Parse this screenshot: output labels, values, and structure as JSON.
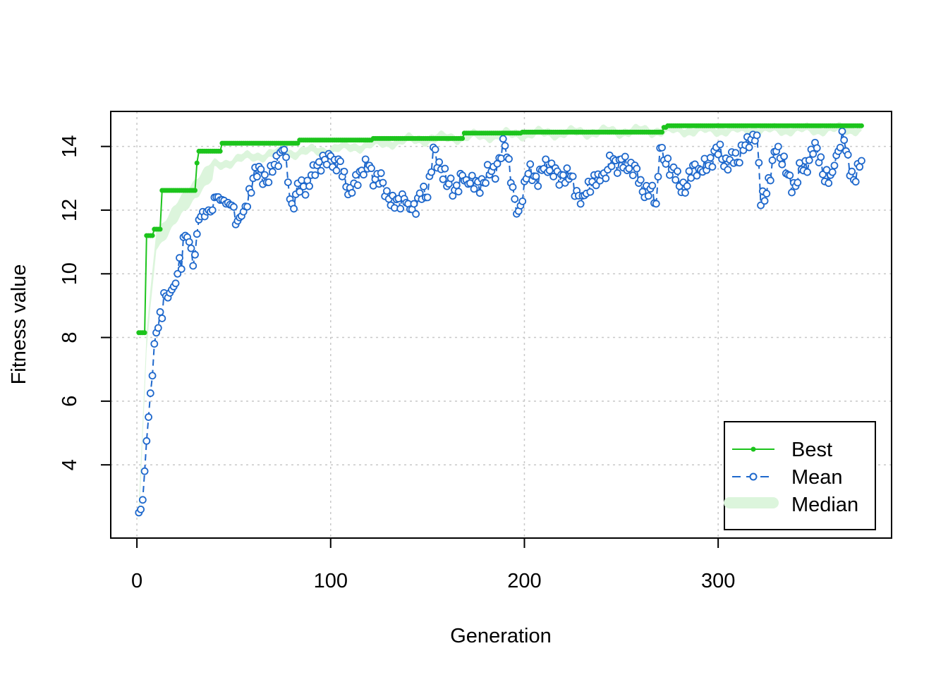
{
  "chart_data": {
    "type": "line",
    "xlabel": "Generation",
    "ylabel": "Fitness value",
    "xlim": [
      -13.5,
      389.5
    ],
    "ylim": [
      1.7,
      15.1
    ],
    "x_ticks": [
      0,
      100,
      200,
      300
    ],
    "y_ticks": [
      4,
      6,
      8,
      10,
      12,
      14
    ],
    "grid": true,
    "legend_position": "bottom-right",
    "generations": 374,
    "series": [
      {
        "name": "Best",
        "style": "solid line with filled dots",
        "color": "#1cc41c",
        "steps": [
          {
            "x": [
              1,
              4
            ],
            "y": 8.15
          },
          {
            "x": [
              5,
              8
            ],
            "y": 11.2
          },
          {
            "x": [
              9,
              12
            ],
            "y": 11.4
          },
          {
            "x": [
              13,
              30
            ],
            "y": 12.62
          },
          {
            "x": [
              31,
              31
            ],
            "y": 13.48
          },
          {
            "x": [
              32,
              43
            ],
            "y": 13.85
          },
          {
            "x": [
              44,
              83
            ],
            "y": 14.1
          },
          {
            "x": [
              84,
              121
            ],
            "y": 14.2
          },
          {
            "x": [
              122,
              168
            ],
            "y": 14.25
          },
          {
            "x": [
              169,
              198
            ],
            "y": 14.42
          },
          {
            "x": [
              199,
              271
            ],
            "y": 14.45
          },
          {
            "x": [
              272,
              273
            ],
            "y": 14.6
          },
          {
            "x": [
              274,
              374
            ],
            "y": 14.65
          }
        ]
      },
      {
        "name": "Mean",
        "style": "dashed line with open circles",
        "color": "#1e68cc",
        "points": [
          [
            1,
            2.5
          ],
          [
            2,
            2.6
          ],
          [
            3,
            2.9
          ],
          [
            4,
            3.8
          ],
          [
            5,
            4.75
          ],
          [
            6,
            5.5
          ],
          [
            7,
            6.25
          ],
          [
            8,
            6.8
          ],
          [
            9,
            7.8
          ],
          [
            10,
            8.15
          ],
          [
            11,
            8.3
          ],
          [
            12,
            8.8
          ],
          [
            13,
            8.6
          ],
          [
            14,
            9.4
          ],
          [
            15,
            9.3
          ],
          [
            16,
            9.25
          ],
          [
            17,
            9.4
          ],
          [
            18,
            9.5
          ],
          [
            19,
            9.6
          ],
          [
            20,
            9.7
          ],
          [
            21,
            10.0
          ],
          [
            22,
            10.5
          ],
          [
            23,
            10.15
          ],
          [
            24,
            11.15
          ],
          [
            25,
            11.2
          ],
          [
            26,
            11.15
          ],
          [
            27,
            11.0
          ],
          [
            28,
            10.8
          ],
          [
            29,
            10.25
          ],
          [
            30,
            10.6
          ],
          [
            31,
            11.25
          ],
          [
            32,
            11.7
          ],
          [
            33,
            11.8
          ],
          [
            34,
            11.95
          ],
          [
            35,
            11.8
          ],
          [
            36,
            11.95
          ],
          [
            37,
            12.0
          ],
          [
            38,
            11.95
          ],
          [
            39,
            12.0
          ],
          [
            40,
            12.4
          ],
          [
            45,
            12.3
          ],
          [
            50,
            12.1
          ],
          [
            51,
            11.55
          ],
          [
            55,
            11.95
          ],
          [
            60,
            13.0
          ],
          [
            70,
            13.2
          ],
          [
            76,
            13.9
          ],
          [
            80,
            12.2
          ],
          [
            90,
            13.1
          ],
          [
            100,
            13.7
          ],
          [
            110,
            12.7
          ],
          [
            120,
            13.4
          ],
          [
            130,
            12.35
          ],
          [
            140,
            12.2
          ],
          [
            150,
            12.4
          ],
          [
            153,
            13.97
          ],
          [
            160,
            12.75
          ],
          [
            170,
            12.95
          ],
          [
            180,
            12.85
          ],
          [
            190,
            14.02
          ],
          [
            195,
            12.35
          ],
          [
            197,
            11.97
          ],
          [
            200,
            12.9
          ],
          [
            210,
            13.3
          ],
          [
            220,
            13.1
          ],
          [
            230,
            12.45
          ],
          [
            240,
            13.1
          ],
          [
            250,
            13.6
          ],
          [
            260,
            12.95
          ],
          [
            268,
            12.2
          ],
          [
            270,
            13.95
          ],
          [
            280,
            12.75
          ],
          [
            290,
            13.3
          ],
          [
            300,
            13.75
          ],
          [
            310,
            13.5
          ],
          [
            315,
            14.3
          ],
          [
            320,
            14.35
          ],
          [
            322,
            12.15
          ],
          [
            330,
            13.85
          ],
          [
            340,
            12.75
          ],
          [
            350,
            14.12
          ],
          [
            355,
            12.9
          ],
          [
            360,
            13.4
          ],
          [
            365,
            14.2
          ],
          [
            370,
            12.95
          ],
          [
            374,
            13.55
          ]
        ]
      },
      {
        "name": "Median",
        "style": "shaded band",
        "color": "#dcf5dc",
        "approximate_median": [
          [
            1,
            2.5
          ],
          [
            5,
            8.0
          ],
          [
            10,
            11.3
          ],
          [
            20,
            12.0
          ],
          [
            30,
            12.9
          ],
          [
            40,
            13.4
          ],
          [
            60,
            13.7
          ],
          [
            80,
            13.8
          ],
          [
            100,
            13.9
          ],
          [
            120,
            14.05
          ],
          [
            140,
            14.2
          ],
          [
            169,
            14.3
          ],
          [
            200,
            14.4
          ],
          [
            272,
            14.5
          ],
          [
            374,
            14.55
          ]
        ]
      }
    ],
    "legend": [
      "Best",
      "Mean",
      "Median"
    ]
  }
}
